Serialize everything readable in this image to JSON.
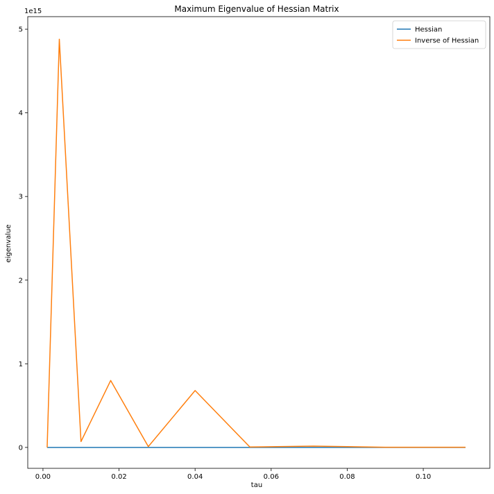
{
  "chart_data": {
    "type": "line",
    "title": "Maximum Eigenvalue of Hessian Matrix",
    "xlabel": "tau",
    "ylabel": "eigenvalue",
    "y_offset_label": "1e15",
    "y_scale_factor": 1000000000000000.0,
    "xlim": [
      -0.004,
      0.1175
    ],
    "ylim": [
      -0.25,
      5.15
    ],
    "x_ticks": [
      0.0,
      0.02,
      0.04,
      0.06,
      0.08,
      0.1
    ],
    "x_tick_labels": [
      "0.00",
      "0.02",
      "0.04",
      "0.06",
      "0.08",
      "0.10"
    ],
    "y_ticks": [
      0,
      1,
      2,
      3,
      4,
      5
    ],
    "y_tick_labels": [
      "0",
      "1",
      "2",
      "3",
      "4",
      "5"
    ],
    "grid": false,
    "legend_position": "top-right",
    "series": [
      {
        "name": "Hessian",
        "color": "#1f77b4",
        "x": [
          0.0011,
          0.0043,
          0.01,
          0.0178,
          0.0277,
          0.04,
          0.0544,
          0.0711,
          0.09,
          0.1111
        ],
        "y": [
          0,
          0,
          0,
          0,
          0,
          0,
          0,
          0,
          0,
          0
        ]
      },
      {
        "name": "Inverse of Hessian",
        "color": "#ff7f0e",
        "x": [
          0.0011,
          0.0043,
          0.01,
          0.0178,
          0.0277,
          0.04,
          0.0544,
          0.0711,
          0.09,
          0.1111
        ],
        "y": [
          0.0,
          4.88,
          0.07,
          0.8,
          0.01,
          0.68,
          0.005,
          0.015,
          0.002,
          0.002
        ]
      }
    ]
  }
}
